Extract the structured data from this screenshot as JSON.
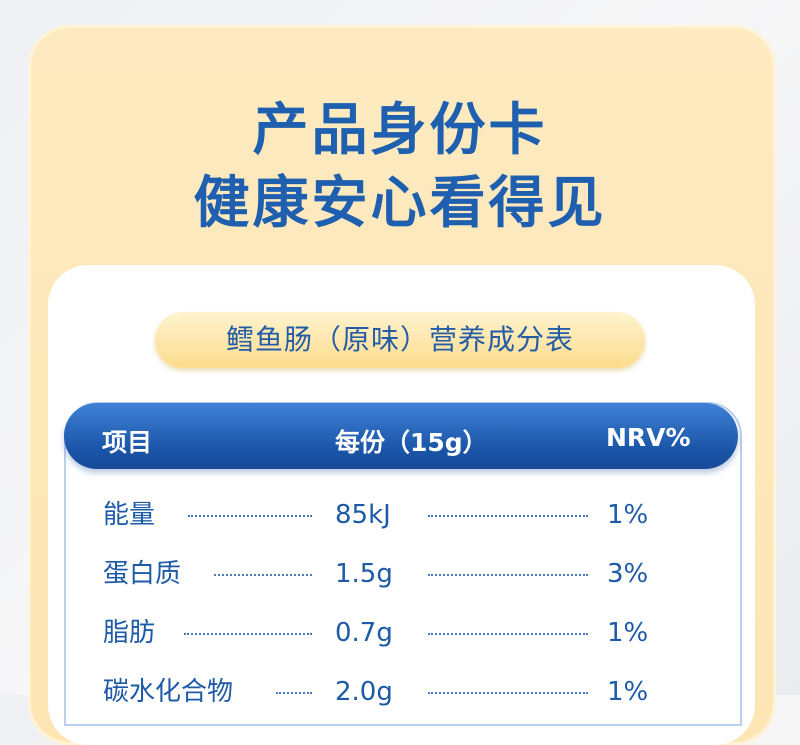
{
  "title": {
    "line1": "产品身份卡",
    "line2": "健康安心看得见"
  },
  "table_title": "鳕鱼肠（原味）营养成分表",
  "table": {
    "headers": [
      "项目",
      "每份（15g）",
      "NRV%"
    ],
    "rows": [
      {
        "item": "能量",
        "per_serving": "85kJ",
        "nrv": "1%"
      },
      {
        "item": "蛋白质",
        "per_serving": "1.5g",
        "nrv": "3%"
      },
      {
        "item": "脂肪",
        "per_serving": "0.7g",
        "nrv": "1%"
      },
      {
        "item": "碳水化合物",
        "per_serving": "2.0g",
        "nrv": "1%"
      }
    ]
  },
  "colors": {
    "primary_blue": "#1e5fb0",
    "card_yellow": "#fde6b4"
  }
}
